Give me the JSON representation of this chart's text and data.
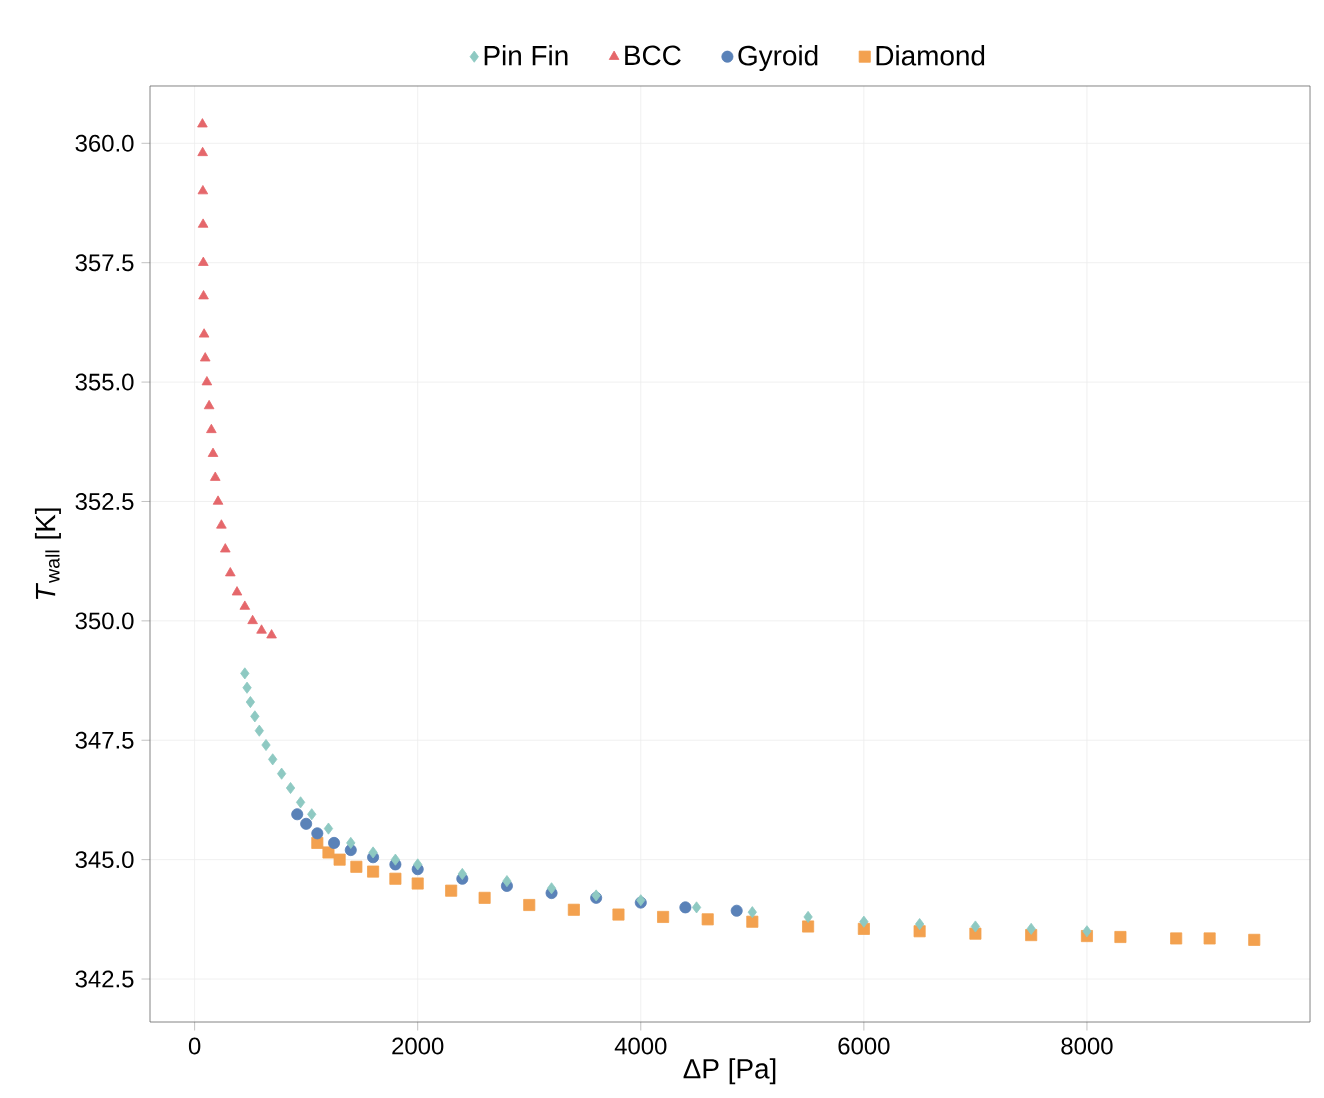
{
  "chart_data": {
    "type": "scatter",
    "xlabel": "ΔP [Pa]",
    "ylabel": "*T*$_{wall}$ [K]",
    "xlim": [
      -400,
      10000
    ],
    "ylim": [
      341.6,
      361.2
    ],
    "xticks": [
      0,
      2000,
      4000,
      6000,
      8000
    ],
    "yticks": [
      {
        "value": 342.5,
        "label": "342.5"
      },
      {
        "value": 345,
        "label": "345.0"
      },
      {
        "value": 347.5,
        "label": "347.5"
      },
      {
        "value": 350,
        "label": "350.0"
      },
      {
        "value": 352.5,
        "label": "352.5"
      },
      {
        "value": 355,
        "label": "355.0"
      },
      {
        "value": 357.5,
        "label": "357.5"
      },
      {
        "value": 360,
        "label": "360.0"
      }
    ],
    "grid": true,
    "legend": "top",
    "series": [
      {
        "name": "Pin Fin",
        "color": "#8ec9c2",
        "marker": "diamond",
        "x": [
          450,
          470,
          500,
          540,
          580,
          640,
          700,
          780,
          860,
          950,
          1050,
          1200,
          1400,
          1600,
          1800,
          2000,
          2400,
          2800,
          3200,
          3600,
          4000,
          4500,
          5000,
          5500,
          6000,
          6500,
          7000,
          7500,
          8000
        ],
        "values": [
          348.9,
          348.6,
          348.3,
          348.0,
          347.7,
          347.4,
          347.1,
          346.8,
          346.5,
          346.2,
          345.95,
          345.65,
          345.35,
          345.15,
          345.0,
          344.9,
          344.7,
          344.55,
          344.4,
          344.25,
          344.15,
          344.0,
          343.9,
          343.8,
          343.7,
          343.65,
          343.6,
          343.55,
          343.5
        ]
      },
      {
        "name": "BCC",
        "color": "#e5676b",
        "marker": "triangle",
        "x": [
          70,
          72,
          74,
          76,
          78,
          80,
          85,
          95,
          110,
          130,
          150,
          165,
          185,
          210,
          240,
          275,
          320,
          380,
          450,
          520,
          600,
          690
        ],
        "values": [
          360.4,
          359.8,
          359.0,
          358.3,
          357.5,
          356.8,
          356.0,
          355.5,
          355.0,
          354.5,
          354.0,
          353.5,
          353.0,
          352.5,
          352.0,
          351.5,
          351.0,
          350.6,
          350.3,
          350.0,
          349.8,
          349.7
        ]
      },
      {
        "name": "Gyroid",
        "color": "#5a82b8",
        "marker": "circle",
        "x": [
          920,
          1000,
          1100,
          1250,
          1400,
          1600,
          1800,
          2000,
          2400,
          2800,
          3200,
          3600,
          4000,
          4400,
          4860
        ],
        "values": [
          345.95,
          345.75,
          345.55,
          345.35,
          345.2,
          345.05,
          344.9,
          344.8,
          344.6,
          344.45,
          344.3,
          344.2,
          344.1,
          344.0,
          343.93
        ]
      },
      {
        "name": "Diamond",
        "color": "#f3a14f",
        "marker": "square",
        "x": [
          1100,
          1200,
          1300,
          1450,
          1600,
          1800,
          2000,
          2300,
          2600,
          3000,
          3400,
          3800,
          4200,
          4600,
          5000,
          5500,
          6000,
          6500,
          7000,
          7500,
          8000,
          8300,
          8800,
          9100,
          9500
        ],
        "values": [
          345.35,
          345.15,
          345.0,
          344.85,
          344.75,
          344.6,
          344.5,
          344.35,
          344.2,
          344.05,
          343.95,
          343.85,
          343.8,
          343.75,
          343.7,
          343.6,
          343.55,
          343.5,
          343.45,
          343.42,
          343.4,
          343.38,
          343.35,
          343.35,
          343.32
        ]
      }
    ]
  }
}
